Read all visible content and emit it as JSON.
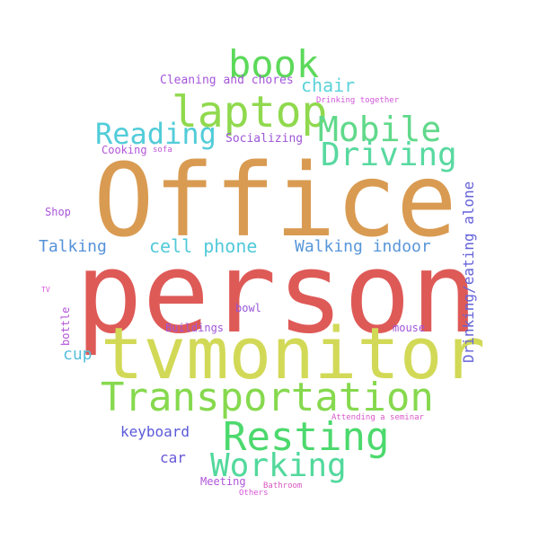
{
  "words": [
    {
      "text": "Office",
      "color": "#d99b52"
    },
    {
      "text": "person",
      "color": "#de5a57"
    },
    {
      "text": "tvmonitor",
      "color": "#d2d956"
    },
    {
      "text": "Transportation",
      "color": "#86d94e"
    },
    {
      "text": "Resting",
      "color": "#4cd96d"
    },
    {
      "text": "Working",
      "color": "#52d99c"
    },
    {
      "text": "laptop",
      "color": "#90d94e"
    },
    {
      "text": "book",
      "color": "#5cd95a"
    },
    {
      "text": "Mobile",
      "color": "#60d98a"
    },
    {
      "text": "Driving",
      "color": "#58d9a0"
    },
    {
      "text": "Reading",
      "color": "#52ccd9"
    },
    {
      "text": "cell phone",
      "color": "#52c9d9"
    },
    {
      "text": "Walking indoor",
      "color": "#5896d9"
    },
    {
      "text": "Talking",
      "color": "#5592d9"
    },
    {
      "text": "chair",
      "color": "#5ad2d9"
    },
    {
      "text": "cup",
      "color": "#56bfd9"
    },
    {
      "text": "keyboard",
      "color": "#5a5ad9"
    },
    {
      "text": "car",
      "color": "#6656d9"
    },
    {
      "text": "Drinking/eating alone",
      "color": "#6562d9"
    },
    {
      "text": "Socializing",
      "color": "#9d56d9"
    },
    {
      "text": "Cleaning and chores",
      "color": "#a556d9"
    },
    {
      "text": "Shop",
      "color": "#a856d9"
    },
    {
      "text": "bowl",
      "color": "#9856d9"
    },
    {
      "text": "Buildings",
      "color": "#a256d9"
    },
    {
      "text": "mouse",
      "color": "#a556d9"
    },
    {
      "text": "Meeting",
      "color": "#b056d9"
    },
    {
      "text": "Cooking",
      "color": "#b256d9"
    },
    {
      "text": "bottle",
      "color": "#b456d9"
    },
    {
      "text": "sofa",
      "color": "#c256d9"
    },
    {
      "text": "Drinking together",
      "color": "#d056d9"
    },
    {
      "text": "TV",
      "color": "#d856d9"
    },
    {
      "text": "Attending a seminar",
      "color": "#d856c8"
    },
    {
      "text": "Bathroom",
      "color": "#d856c0"
    },
    {
      "text": "Others",
      "color": "#d856d9"
    }
  ]
}
